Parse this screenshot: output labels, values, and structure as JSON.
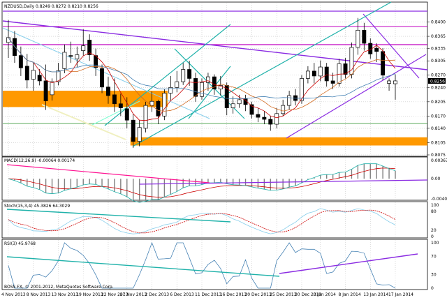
{
  "chart_data": [
    {
      "type": "candlestick",
      "title": "NZDUSD,Daily 0.8249 0.8272 0.8210 0.8256",
      "ylim": [
        0.8075,
        0.843
      ],
      "y_ticks": [
        "0.8400",
        "0.8365",
        "0.8335",
        "0.8305",
        "0.8270",
        "0.8240",
        "0.8205",
        "0.8170",
        "0.8140",
        "0.8105",
        "0.8075"
      ],
      "current_price": "0.8256",
      "candles": [
        {
          "o": 0.835,
          "h": 0.8405,
          "l": 0.8312,
          "c": 0.8362
        },
        {
          "o": 0.836,
          "h": 0.8378,
          "l": 0.83,
          "c": 0.8318
        },
        {
          "o": 0.8318,
          "h": 0.834,
          "l": 0.8268,
          "c": 0.8288
        },
        {
          "o": 0.8292,
          "h": 0.8322,
          "l": 0.8238,
          "c": 0.8258
        },
        {
          "o": 0.826,
          "h": 0.83,
          "l": 0.8232,
          "c": 0.8282
        },
        {
          "o": 0.827,
          "h": 0.8285,
          "l": 0.8245,
          "c": 0.8256
        },
        {
          "o": 0.8256,
          "h": 0.8296,
          "l": 0.8185,
          "c": 0.8207
        },
        {
          "o": 0.8222,
          "h": 0.8262,
          "l": 0.8208,
          "c": 0.8254
        },
        {
          "o": 0.8254,
          "h": 0.83,
          "l": 0.8245,
          "c": 0.8281
        },
        {
          "o": 0.8286,
          "h": 0.8345,
          "l": 0.8275,
          "c": 0.8326
        },
        {
          "o": 0.8318,
          "h": 0.8352,
          "l": 0.83,
          "c": 0.8316
        },
        {
          "o": 0.831,
          "h": 0.834,
          "l": 0.829,
          "c": 0.832
        },
        {
          "o": 0.833,
          "h": 0.8382,
          "l": 0.8318,
          "c": 0.8342
        },
        {
          "o": 0.8356,
          "h": 0.837,
          "l": 0.8305,
          "c": 0.832
        },
        {
          "o": 0.8318,
          "h": 0.8335,
          "l": 0.8268,
          "c": 0.8289
        },
        {
          "o": 0.8286,
          "h": 0.8296,
          "l": 0.8226,
          "c": 0.8241
        },
        {
          "o": 0.8241,
          "h": 0.8266,
          "l": 0.82,
          "c": 0.822
        },
        {
          "o": 0.8222,
          "h": 0.8262,
          "l": 0.818,
          "c": 0.82
        },
        {
          "o": 0.82,
          "h": 0.8225,
          "l": 0.817,
          "c": 0.819
        },
        {
          "o": 0.8188,
          "h": 0.8216,
          "l": 0.814,
          "c": 0.816
        },
        {
          "o": 0.816,
          "h": 0.8175,
          "l": 0.8092,
          "c": 0.8108
        },
        {
          "o": 0.8108,
          "h": 0.816,
          "l": 0.8096,
          "c": 0.8142
        },
        {
          "o": 0.814,
          "h": 0.8205,
          "l": 0.813,
          "c": 0.8196
        },
        {
          "o": 0.8196,
          "h": 0.823,
          "l": 0.818,
          "c": 0.8206
        },
        {
          "o": 0.8206,
          "h": 0.821,
          "l": 0.815,
          "c": 0.817
        },
        {
          "o": 0.817,
          "h": 0.8236,
          "l": 0.816,
          "c": 0.8226
        },
        {
          "o": 0.8226,
          "h": 0.8268,
          "l": 0.8208,
          "c": 0.824
        },
        {
          "o": 0.824,
          "h": 0.828,
          "l": 0.8228,
          "c": 0.8254
        },
        {
          "o": 0.8254,
          "h": 0.83,
          "l": 0.8246,
          "c": 0.8284
        },
        {
          "o": 0.8284,
          "h": 0.8305,
          "l": 0.8244,
          "c": 0.8262
        },
        {
          "o": 0.8262,
          "h": 0.8276,
          "l": 0.8205,
          "c": 0.8218
        },
        {
          "o": 0.8218,
          "h": 0.8262,
          "l": 0.821,
          "c": 0.8252
        },
        {
          "o": 0.8252,
          "h": 0.8276,
          "l": 0.8232,
          "c": 0.8266
        },
        {
          "o": 0.8266,
          "h": 0.8272,
          "l": 0.8222,
          "c": 0.8236
        },
        {
          "o": 0.8236,
          "h": 0.8268,
          "l": 0.822,
          "c": 0.8245
        },
        {
          "o": 0.8245,
          "h": 0.8252,
          "l": 0.8172,
          "c": 0.819
        },
        {
          "o": 0.819,
          "h": 0.8218,
          "l": 0.8176,
          "c": 0.82
        },
        {
          "o": 0.82,
          "h": 0.8222,
          "l": 0.819,
          "c": 0.821
        },
        {
          "o": 0.8212,
          "h": 0.8222,
          "l": 0.8182,
          "c": 0.8198
        },
        {
          "o": 0.8198,
          "h": 0.8205,
          "l": 0.8164,
          "c": 0.8174
        },
        {
          "o": 0.8174,
          "h": 0.819,
          "l": 0.8155,
          "c": 0.8167
        },
        {
          "o": 0.8167,
          "h": 0.8182,
          "l": 0.815,
          "c": 0.8162
        },
        {
          "o": 0.8162,
          "h": 0.817,
          "l": 0.8134,
          "c": 0.815
        },
        {
          "o": 0.815,
          "h": 0.819,
          "l": 0.814,
          "c": 0.8176
        },
        {
          "o": 0.8176,
          "h": 0.821,
          "l": 0.817,
          "c": 0.8196
        },
        {
          "o": 0.8196,
          "h": 0.8232,
          "l": 0.8186,
          "c": 0.822
        },
        {
          "o": 0.822,
          "h": 0.8236,
          "l": 0.8196,
          "c": 0.8208
        },
        {
          "o": 0.8208,
          "h": 0.827,
          "l": 0.82,
          "c": 0.8262
        },
        {
          "o": 0.8262,
          "h": 0.8292,
          "l": 0.825,
          "c": 0.828
        },
        {
          "o": 0.828,
          "h": 0.83,
          "l": 0.825,
          "c": 0.8268
        },
        {
          "o": 0.8268,
          "h": 0.8306,
          "l": 0.8255,
          "c": 0.829
        },
        {
          "o": 0.829,
          "h": 0.83,
          "l": 0.8242,
          "c": 0.8256
        },
        {
          "o": 0.8256,
          "h": 0.8276,
          "l": 0.8236,
          "c": 0.825
        },
        {
          "o": 0.825,
          "h": 0.831,
          "l": 0.8242,
          "c": 0.8298
        },
        {
          "o": 0.8298,
          "h": 0.8312,
          "l": 0.8262,
          "c": 0.8272
        },
        {
          "o": 0.8272,
          "h": 0.835,
          "l": 0.8262,
          "c": 0.8338
        },
        {
          "o": 0.8338,
          "h": 0.841,
          "l": 0.832,
          "c": 0.838
        },
        {
          "o": 0.838,
          "h": 0.8398,
          "l": 0.833,
          "c": 0.8348
        },
        {
          "o": 0.8348,
          "h": 0.836,
          "l": 0.831,
          "c": 0.8322
        },
        {
          "o": 0.8336,
          "h": 0.8348,
          "l": 0.8302,
          "c": 0.8328
        },
        {
          "o": 0.8328,
          "h": 0.8336,
          "l": 0.8258,
          "c": 0.827
        },
        {
          "o": 0.825,
          "h": 0.8262,
          "l": 0.8232,
          "c": 0.8256
        },
        {
          "o": 0.8249,
          "h": 0.8272,
          "l": 0.821,
          "c": 0.8256
        }
      ],
      "zones": [
        {
          "from": 0.8192,
          "to": 0.8232,
          "color": "#ff9900"
        },
        {
          "from": 0.8098,
          "to": 0.8118,
          "color": "#ff9900"
        }
      ],
      "x_labels": [
        "4 Nov 2013",
        "8 Nov 2013",
        "13 Nov 2013",
        "19 Nov 2013",
        "22 Nov 2013",
        "27 Nov 2013",
        "2 Dec 2013",
        "6 Dec 2013",
        "11 Dec 2013",
        "16 Dec 2013",
        "20 Dec 2013",
        "25 Dec 2013",
        "30 Dec 2013",
        "3 Jan 2014",
        "8 Jan 2014",
        "13 Jan 2014",
        "17 Jan 2014"
      ]
    },
    {
      "type": "histogram",
      "title": "MACD(12,26,9) -0.00064 0.00174",
      "y_ticks": [
        "0.00367",
        "0.00",
        "-0.00403"
      ],
      "ylim": [
        -0.00403,
        0.00367
      ]
    },
    {
      "type": "line",
      "title": "Stoch(15,3,4) 45.3826 64.3029",
      "y_ticks": [
        "100",
        "80",
        "20",
        "0"
      ],
      "ylim": [
        0,
        100
      ]
    },
    {
      "type": "line",
      "title": "RSI(3) 45.9768",
      "y_ticks": [
        "100",
        "70",
        "30",
        "0"
      ],
      "ylim": [
        0,
        100
      ]
    }
  ],
  "footer": "BOSS FX, © 2001-2012, MetaQuotes Software Corp.",
  "colors": {
    "bull": "#ffffff",
    "bear": "#000000",
    "zone": "#ff9900",
    "purple": "#8a2be2",
    "magenta": "#c000c0",
    "teal": "#20b2aa",
    "red": "#cc0000",
    "grid": "#c8c8c8"
  }
}
